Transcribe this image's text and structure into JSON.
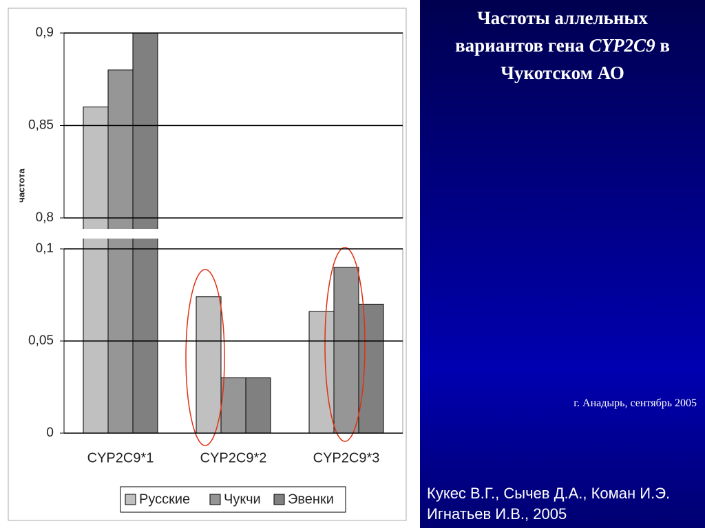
{
  "chart_data": {
    "type": "bar",
    "y_label": "частота",
    "categories": [
      "CYP2C9*1",
      "CYP2C9*2",
      "CYP2C9*3"
    ],
    "series": [
      {
        "name": "Русские",
        "color": "#c0c0c0",
        "values": [
          0.86,
          0.074,
          0.066
        ]
      },
      {
        "name": "Чукчи",
        "color": "#969696",
        "values": [
          0.88,
          0.03,
          0.09
        ]
      },
      {
        "name": "Эвенки",
        "color": "#808080",
        "values": [
          0.9,
          0.03,
          0.07
        ]
      }
    ],
    "ylim": [
      0,
      0.9
    ],
    "y_break": [
      0.1,
      0.8
    ],
    "yticks": [
      0,
      {
        "value": 0.05,
        "label": "0,05"
      },
      {
        "value": 0.1,
        "label": "0,1"
      },
      {
        "value": 0.8,
        "label": "0,8"
      },
      {
        "value": 0.85,
        "label": "0,85"
      },
      {
        "value": 0.9,
        "label": "0,9"
      }
    ],
    "grid": true,
    "legend": "bottom"
  },
  "slide": {
    "title_lines": [
      [
        "Частоты аллельных"
      ],
      [
        "вариантов гена ",
        "CYP2C9",
        " в"
      ],
      [
        "Чукотском АО"
      ]
    ],
    "place": "г. Анадырь, сентябрь 2005",
    "authors": [
      "Кукес В.Г., Сычев Д.А., Коман И.Э.",
      "Игнатьев И.В., 2005"
    ]
  }
}
